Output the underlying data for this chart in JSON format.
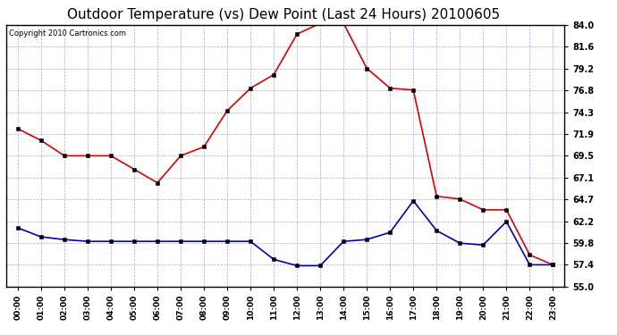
{
  "title": "Outdoor Temperature (vs) Dew Point (Last 24 Hours) 20100605",
  "copyright_text": "Copyright 2010 Cartronics.com",
  "x_labels": [
    "00:00",
    "01:00",
    "02:00",
    "03:00",
    "04:00",
    "05:00",
    "06:00",
    "07:00",
    "08:00",
    "09:00",
    "10:00",
    "11:00",
    "12:00",
    "13:00",
    "14:00",
    "15:00",
    "16:00",
    "17:00",
    "18:00",
    "19:00",
    "20:00",
    "21:00",
    "22:00",
    "23:00"
  ],
  "temp_data": [
    72.5,
    71.2,
    69.5,
    69.5,
    69.5,
    68.0,
    66.5,
    69.5,
    70.5,
    74.5,
    77.0,
    78.5,
    83.0,
    84.2,
    84.2,
    79.2,
    77.0,
    76.8,
    65.0,
    64.7,
    63.5,
    63.5,
    58.5,
    57.4
  ],
  "dew_data": [
    61.5,
    60.5,
    60.2,
    60.0,
    60.0,
    60.0,
    60.0,
    60.0,
    60.0,
    60.0,
    60.0,
    58.0,
    57.3,
    57.3,
    60.0,
    60.2,
    61.0,
    64.5,
    61.2,
    59.8,
    59.6,
    62.2,
    57.4,
    57.4
  ],
  "ylim_min": 55.0,
  "ylim_max": 84.0,
  "yticks": [
    55.0,
    57.4,
    59.8,
    62.2,
    64.7,
    67.1,
    69.5,
    71.9,
    74.3,
    76.8,
    79.2,
    81.6,
    84.0
  ],
  "temp_color": "#dd0000",
  "dew_color": "#0000bb",
  "bg_color": "#ffffff",
  "plot_bg_color": "#ffffff",
  "grid_color": "#aaaadd",
  "title_fontsize": 11,
  "copyright_fontsize": 6,
  "tick_fontsize": 7,
  "xtick_fontsize": 6.5
}
